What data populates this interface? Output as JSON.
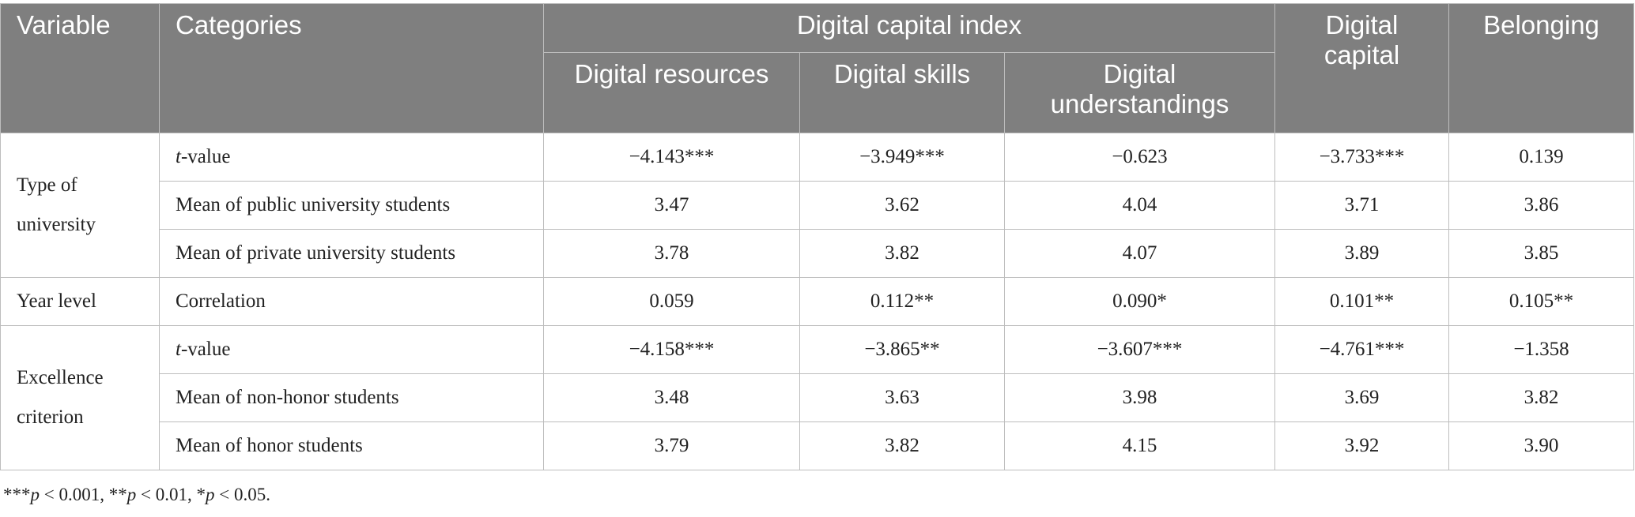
{
  "header": {
    "variable": "Variable",
    "categories": "Categories",
    "digital_capital_index": "Digital capital index",
    "digital_resources": "Digital resources",
    "digital_skills": "Digital skills",
    "digital_understandings": "Digital understandings",
    "digital_capital": "Digital capital",
    "belonging": "Belonging"
  },
  "groups": [
    {
      "variable": "Type of university",
      "rows": [
        {
          "category_italic": "t",
          "category": "-value",
          "values": [
            "−4.143***",
            "−3.949***",
            "−0.623",
            "−3.733***",
            "0.139"
          ]
        },
        {
          "category_italic": "",
          "category": "Mean of public university students",
          "values": [
            "3.47",
            "3.62",
            "4.04",
            "3.71",
            "3.86"
          ]
        },
        {
          "category_italic": "",
          "category": "Mean of private university students",
          "values": [
            "3.78",
            "3.82",
            "4.07",
            "3.89",
            "3.85"
          ]
        }
      ]
    },
    {
      "variable": "Year level",
      "rows": [
        {
          "category_italic": "",
          "category": "Correlation",
          "values": [
            "0.059",
            "0.112**",
            "0.090*",
            "0.101**",
            "0.105**"
          ]
        }
      ]
    },
    {
      "variable": "Excellence criterion",
      "rows": [
        {
          "category_italic": "t",
          "category": "-value",
          "values": [
            "−4.158***",
            "−3.865**",
            "−3.607***",
            "−4.761***",
            "−1.358"
          ]
        },
        {
          "category_italic": "",
          "category": "Mean of non-honor students",
          "values": [
            "3.48",
            "3.63",
            "3.98",
            "3.69",
            "3.82"
          ]
        },
        {
          "category_italic": "",
          "category": "Mean of honor students",
          "values": [
            "3.79",
            "3.82",
            "4.15",
            "3.92",
            "3.90"
          ]
        }
      ]
    }
  ],
  "footnote": {
    "s1": "***",
    "p1": "p",
    "t1": " < 0.001, ",
    "s2": "**",
    "p2": "p",
    "t2": " < 0.01, ",
    "s3": "*",
    "p3": "p",
    "t3": " < 0.05."
  }
}
